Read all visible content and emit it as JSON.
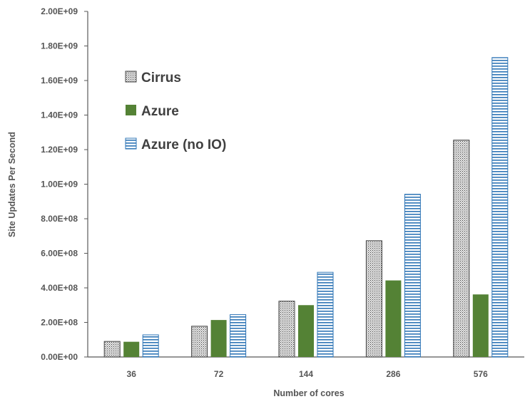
{
  "chart_data": {
    "type": "bar",
    "title": "",
    "xlabel": "Number of cores",
    "ylabel": "Site Updates Per Second",
    "categories": [
      "36",
      "72",
      "144",
      "286",
      "576"
    ],
    "ylim": [
      0,
      2000000000
    ],
    "yticks": [
      0,
      200000000,
      400000000,
      600000000,
      800000000,
      1000000000,
      1200000000,
      1400000000,
      1600000000,
      1800000000,
      2000000000
    ],
    "ytick_labels": [
      "0.00E+00",
      "2.00E+08",
      "4.00E+08",
      "6.00E+08",
      "8.00E+08",
      "1.00E+09",
      "1.20E+09",
      "1.40E+09",
      "1.60E+09",
      "1.80E+09",
      "2.00E+09"
    ],
    "grid": false,
    "legend_position": "upper-left inside plot",
    "series": [
      {
        "name": "Cirrus",
        "pattern": "dotted",
        "color": "#404040",
        "fill": "#d9d9d9",
        "values": [
          90000000,
          178000000,
          323000000,
          673000000,
          1255000000
        ]
      },
      {
        "name": "Azure",
        "pattern": "solid",
        "color": "#548235",
        "fill": "#548235",
        "values": [
          88000000,
          214000000,
          300000000,
          443000000,
          362000000
        ]
      },
      {
        "name": "Azure (no IO)",
        "pattern": "horizontal-stripes",
        "color": "#2e75b6",
        "fill": "#ffffff",
        "values": [
          128000000,
          245000000,
          490000000,
          942000000,
          1733000000
        ]
      }
    ]
  }
}
